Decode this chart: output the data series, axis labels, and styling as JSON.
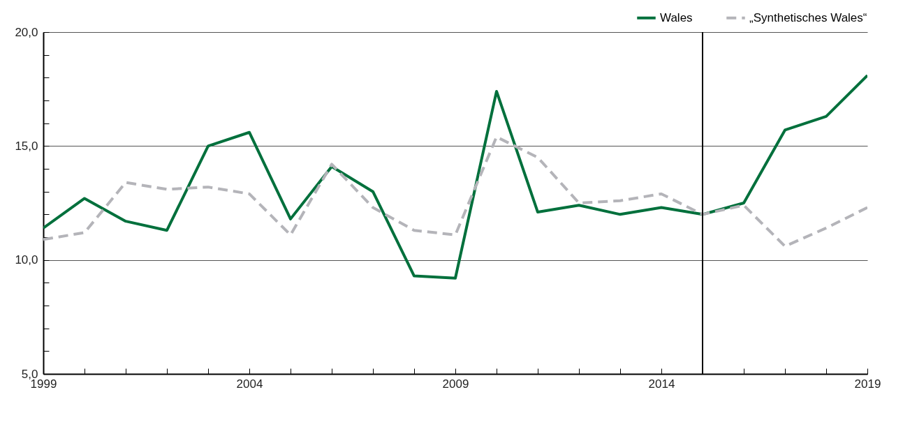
{
  "chart_data": {
    "type": "line",
    "x": [
      1999,
      2000,
      2001,
      2002,
      2003,
      2004,
      2005,
      2006,
      2007,
      2008,
      2009,
      2010,
      2011,
      2012,
      2013,
      2014,
      2015,
      2016,
      2017,
      2018,
      2019
    ],
    "series": [
      {
        "name": "Wales",
        "color": "#00703c",
        "line_style": "solid",
        "values": [
          11.4,
          12.7,
          11.7,
          11.3,
          15.0,
          15.6,
          11.8,
          14.1,
          13.0,
          9.3,
          9.2,
          17.4,
          12.1,
          12.4,
          12.0,
          12.3,
          12.0,
          12.5,
          15.7,
          16.3,
          18.1
        ]
      },
      {
        "name": "„Synthetisches Wales“",
        "color": "#b4b4b9",
        "line_style": "dashed",
        "values": [
          10.9,
          11.2,
          13.4,
          13.1,
          13.2,
          12.9,
          11.1,
          14.2,
          12.3,
          11.3,
          11.1,
          15.4,
          14.5,
          12.5,
          12.6,
          12.9,
          12.0,
          12.4,
          10.6,
          11.4,
          12.3
        ]
      }
    ],
    "xlim": [
      1999,
      2019
    ],
    "xticks": [
      1999,
      {
        "value": 2000,
        "label": null
      },
      {
        "value": 2001,
        "label": null
      },
      {
        "value": 2002,
        "label": null
      },
      {
        "value": 2003,
        "label": null
      },
      2004,
      {
        "value": 2005,
        "label": null
      },
      {
        "value": 2006,
        "label": null
      },
      {
        "value": 2007,
        "label": null
      },
      {
        "value": 2008,
        "label": null
      },
      2009,
      {
        "value": 2010,
        "label": null
      },
      {
        "value": 2011,
        "label": null
      },
      {
        "value": 2012,
        "label": null
      },
      {
        "value": 2013,
        "label": null
      },
      2014,
      {
        "value": 2015,
        "label": null
      },
      {
        "value": 2016,
        "label": null
      },
      {
        "value": 2017,
        "label": null
      },
      {
        "value": 2018,
        "label": null
      },
      2019
    ],
    "ylim": [
      5,
      20
    ],
    "yticks": [
      {
        "value": 5,
        "label": "5,0"
      },
      {
        "value": 6,
        "label": null
      },
      {
        "value": 7,
        "label": null
      },
      {
        "value": 8,
        "label": null
      },
      {
        "value": 9,
        "label": null
      },
      {
        "value": 10,
        "label": "10,0"
      },
      {
        "value": 11,
        "label": null
      },
      {
        "value": 12,
        "label": null
      },
      {
        "value": 13,
        "label": null
      },
      {
        "value": 14,
        "label": null
      },
      {
        "value": 15,
        "label": "15,0"
      },
      {
        "value": 16,
        "label": null
      },
      {
        "value": 17,
        "label": null
      },
      {
        "value": 18,
        "label": null
      },
      {
        "value": 19,
        "label": null
      },
      {
        "value": 20,
        "label": "20,0"
      }
    ],
    "grid": "y",
    "legend": "top right",
    "ref_lines": [
      {
        "axis": "x",
        "value": 2015,
        "color": "#000000"
      }
    ]
  }
}
